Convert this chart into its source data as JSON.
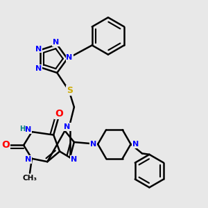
{
  "background_color": "#e8e8e8",
  "bond_color": "#000000",
  "bond_width": 1.8,
  "atom_colors": {
    "N": "#0000ff",
    "O": "#ff0000",
    "S": "#ccaa00",
    "H": "#008080",
    "C": "#000000"
  },
  "font_size": 8
}
